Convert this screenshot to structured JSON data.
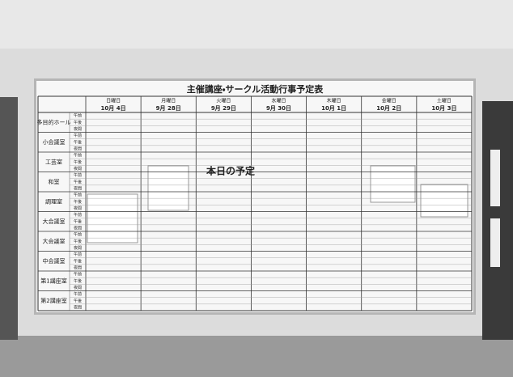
{
  "board": {
    "title": "主催講座・サークル活動行事予定表",
    "days": [
      {
        "weekday": "日曜日",
        "date": "10月 4日"
      },
      {
        "weekday": "月曜日",
        "date": "9月 28日"
      },
      {
        "weekday": "火曜日",
        "date": "9月 29日"
      },
      {
        "weekday": "水曜日",
        "date": "9月 30日"
      },
      {
        "weekday": "木曜日",
        "date": "10月 1日"
      },
      {
        "weekday": "金曜日",
        "date": "10月 2日"
      },
      {
        "weekday": "土曜日",
        "date": "10月 3日"
      }
    ],
    "rooms": [
      "多目的ホール",
      "小会議室",
      "工芸室",
      "和室",
      "調理室",
      "大会議室",
      "大会議室",
      "中会議室",
      "第1講座室",
      "第2講座室"
    ],
    "slots": [
      "午前",
      "午後",
      "夜間"
    ],
    "today_label": "本日の予定"
  }
}
